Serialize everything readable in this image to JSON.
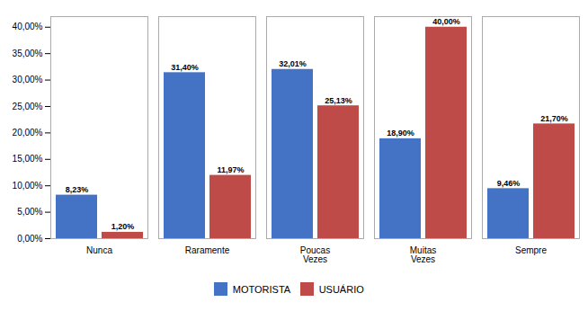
{
  "chart_data": {
    "type": "bar",
    "categories": [
      "Nunca",
      "Raramente",
      "Poucas\nVezes",
      "Muitas\nVezes",
      "Sempre"
    ],
    "series": [
      {
        "name": "MOTORISTA",
        "color": "#4472C4",
        "values": [
          8.23,
          31.4,
          32.01,
          18.9,
          9.46
        ],
        "value_labels": [
          "8,23%",
          "31,40%",
          "32,01%",
          "18,90%",
          "9,46%"
        ]
      },
      {
        "name": "USUÁRIO",
        "color": "#BE4B48",
        "values": [
          1.2,
          11.97,
          25.13,
          40.0,
          21.7
        ],
        "value_labels": [
          "1,20%",
          "11,97%",
          "25,13%",
          "40,00%",
          "21,70%"
        ]
      }
    ],
    "ylim": [
      0,
      42
    ],
    "yticks": [
      {
        "value": 0,
        "label": "0,00%"
      },
      {
        "value": 5,
        "label": "5,00%"
      },
      {
        "value": 10,
        "label": "10,00%"
      },
      {
        "value": 15,
        "label": "15,00%"
      },
      {
        "value": 20,
        "label": "20,00%"
      },
      {
        "value": 25,
        "label": "25,00%"
      },
      {
        "value": 30,
        "label": "30,00%"
      },
      {
        "value": 35,
        "label": "35,00%"
      },
      {
        "value": 40,
        "label": "40,00%"
      }
    ],
    "grid": false,
    "legend": "bottom",
    "data_labels": true
  }
}
